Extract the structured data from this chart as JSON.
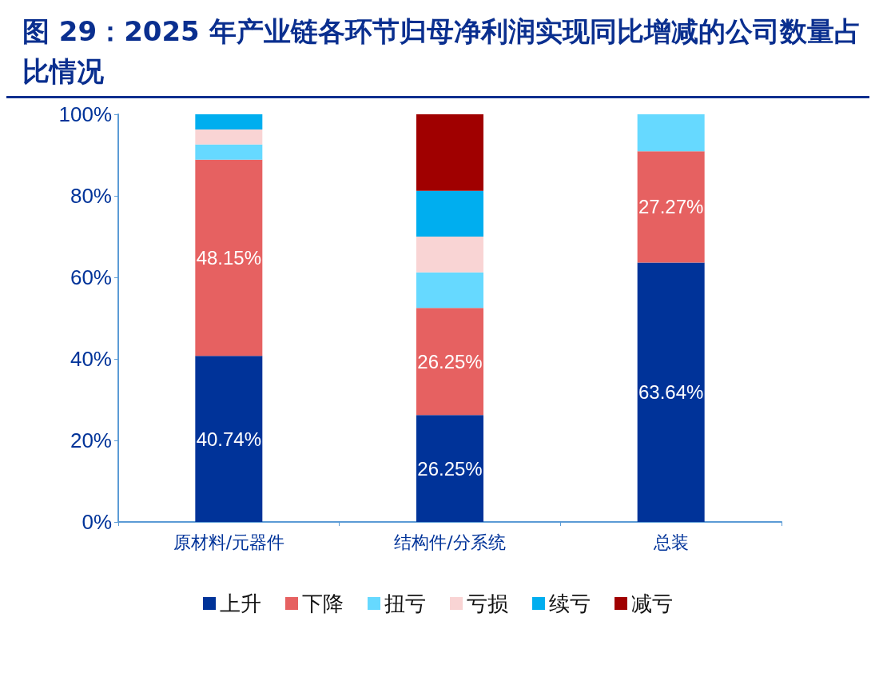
{
  "chart_data": {
    "type": "bar",
    "title": "图 29：2025 年产业链各环节归母净利润实现同比增减的公司数量占比情况",
    "categories": [
      "原材料/元器件",
      "结构件/分系统",
      "总装"
    ],
    "stacked": true,
    "series": [
      {
        "name": "上升",
        "color": "#003399",
        "values": [
          40.74,
          26.25,
          63.64
        ],
        "value_labels": [
          "40.74%",
          "26.25%",
          "63.64%"
        ]
      },
      {
        "name": "下降",
        "color": "#e66161",
        "values": [
          48.15,
          26.25,
          27.27
        ],
        "value_labels": [
          "48.15%",
          "26.25%",
          "27.27%"
        ]
      },
      {
        "name": "扭亏",
        "color": "#66d9ff",
        "values": [
          3.7,
          8.75,
          9.09
        ]
      },
      {
        "name": "亏损",
        "color": "#f9d4d4",
        "values": [
          3.7,
          8.75,
          null
        ]
      },
      {
        "name": "续亏",
        "color": "#00aeef",
        "values": [
          3.7,
          11.25,
          null
        ]
      },
      {
        "name": "减亏",
        "color": "#a00000",
        "values": [
          null,
          18.75,
          null
        ]
      }
    ],
    "ylim": [
      0,
      100
    ],
    "yticks": [
      {
        "value": 0,
        "label": "0%"
      },
      {
        "value": 20,
        "label": "20%"
      },
      {
        "value": 40,
        "label": "40%"
      },
      {
        "value": 60,
        "label": "60%"
      },
      {
        "value": 80,
        "label": "80%"
      },
      {
        "value": 100,
        "label": "100%"
      }
    ],
    "grid": false,
    "legend": "bottom"
  }
}
